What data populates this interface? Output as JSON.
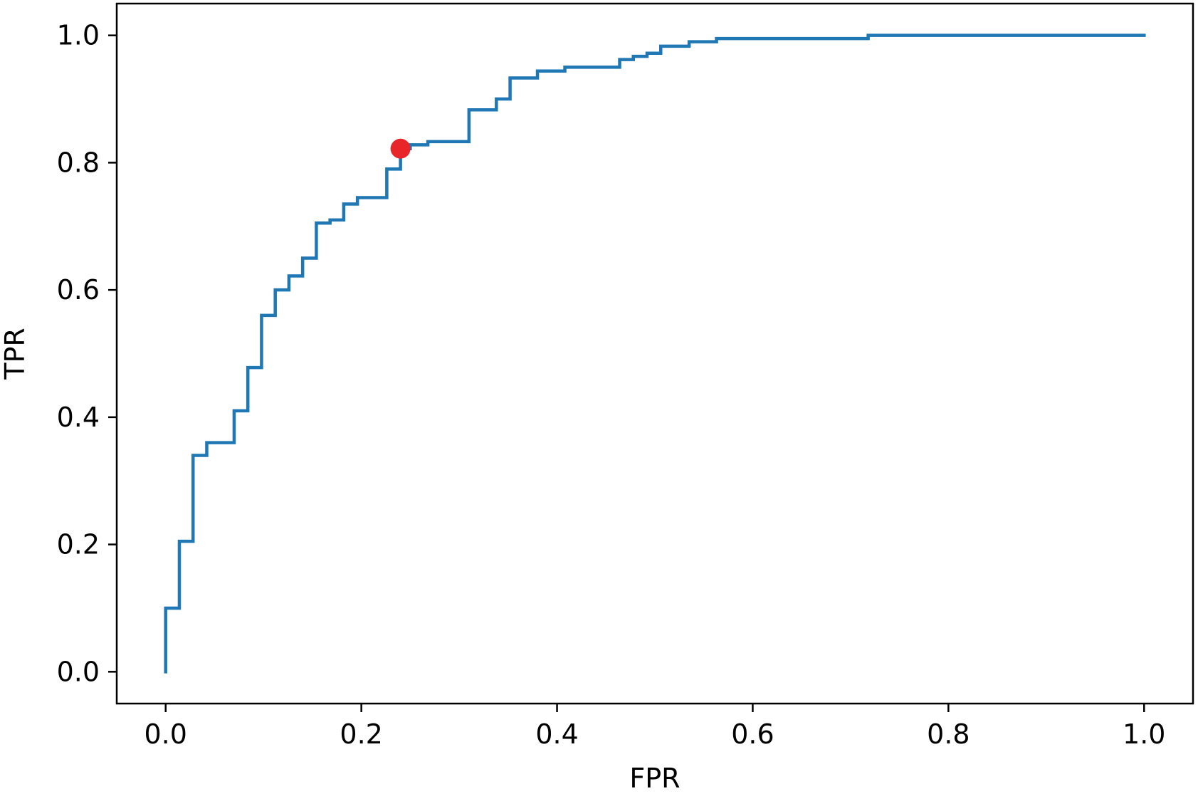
{
  "chart_data": {
    "type": "line",
    "title": "",
    "xlabel": "FPR",
    "ylabel": "TPR",
    "xlim": [
      -0.05,
      1.05
    ],
    "ylim": [
      -0.05,
      1.05
    ],
    "xticks": [
      0.0,
      0.2,
      0.4,
      0.6,
      0.8,
      1.0
    ],
    "yticks": [
      0.0,
      0.2,
      0.4,
      0.6,
      0.8,
      1.0
    ],
    "xtick_labels": [
      "0.0",
      "0.2",
      "0.4",
      "0.6",
      "0.8",
      "1.0"
    ],
    "ytick_labels": [
      "0.0",
      "0.2",
      "0.4",
      "0.6",
      "0.8",
      "1.0"
    ],
    "grid": false,
    "series": [
      {
        "color": "#1f77b4",
        "step": true,
        "x": [
          0.0,
          0.0,
          0.014,
          0.014,
          0.028,
          0.028,
          0.042,
          0.042,
          0.07,
          0.07,
          0.084,
          0.084,
          0.098,
          0.098,
          0.112,
          0.112,
          0.126,
          0.126,
          0.14,
          0.14,
          0.154,
          0.154,
          0.168,
          0.168,
          0.182,
          0.182,
          0.196,
          0.196,
          0.226,
          0.226,
          0.24,
          0.24,
          0.25,
          0.25,
          0.268,
          0.268,
          0.31,
          0.31,
          0.338,
          0.338,
          0.352,
          0.352,
          0.38,
          0.38,
          0.408,
          0.408,
          0.464,
          0.464,
          0.478,
          0.478,
          0.492,
          0.492,
          0.506,
          0.506,
          0.535,
          0.535,
          0.563,
          0.563,
          0.718,
          0.718,
          1.0
        ],
        "y": [
          0.0,
          0.1,
          0.1,
          0.205,
          0.205,
          0.34,
          0.34,
          0.36,
          0.36,
          0.41,
          0.41,
          0.478,
          0.478,
          0.56,
          0.56,
          0.6,
          0.6,
          0.622,
          0.622,
          0.65,
          0.65,
          0.705,
          0.705,
          0.71,
          0.71,
          0.735,
          0.735,
          0.745,
          0.745,
          0.79,
          0.79,
          0.822,
          0.822,
          0.828,
          0.828,
          0.833,
          0.833,
          0.883,
          0.883,
          0.9,
          0.9,
          0.933,
          0.933,
          0.944,
          0.944,
          0.95,
          0.95,
          0.962,
          0.962,
          0.967,
          0.967,
          0.972,
          0.972,
          0.983,
          0.983,
          0.99,
          0.99,
          0.995,
          0.995,
          1.0,
          1.0
        ]
      }
    ],
    "highlight_point": {
      "x": 0.24,
      "y": 0.822,
      "color": "#e8262a"
    }
  }
}
